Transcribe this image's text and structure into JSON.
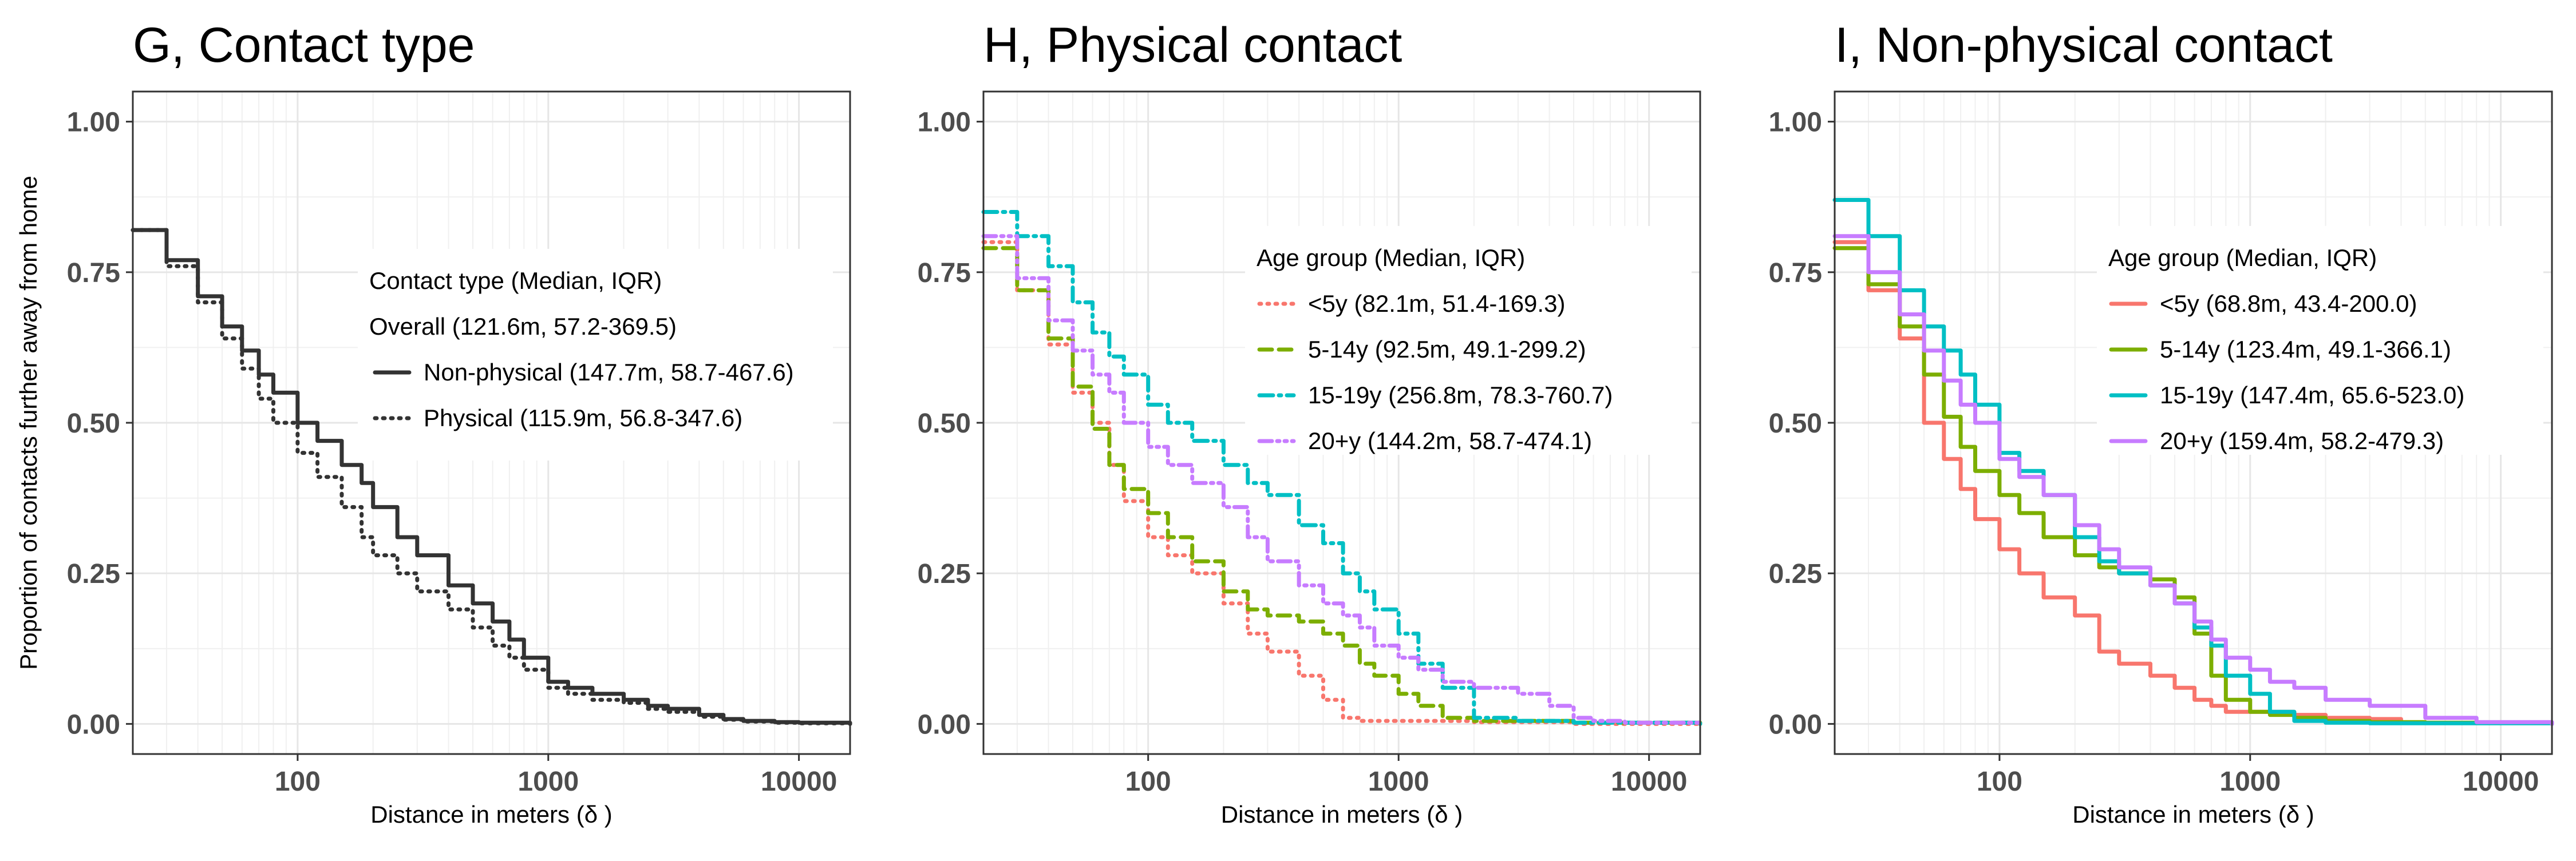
{
  "chart_data": [
    {
      "type": "line",
      "title": "G, Contact type",
      "xlabel": "Distance in meters (δ )",
      "ylabel": "Proportion of contacts further away from home",
      "x_scale": "log10",
      "xlim": [
        22,
        16000
      ],
      "ylim": [
        -0.05,
        1.05
      ],
      "x_ticks": [
        100,
        1000,
        10000
      ],
      "x_tick_labels": [
        "100",
        "1000",
        "10000"
      ],
      "y_ticks": [
        0,
        0.25,
        0.5,
        0.75,
        1.0
      ],
      "y_tick_labels": [
        "0.00",
        "0.25",
        "0.50",
        "0.75",
        "1.00"
      ],
      "grid": true,
      "legend": {
        "title": "Contact type (Median, IQR)",
        "subtitle": "Overall (121.6m, 57.2-369.5)",
        "entries": [
          "Non-physical (147.7m, 58.7-467.6)",
          "Physical (115.9m, 56.8-347.6)"
        ]
      },
      "series": [
        {
          "name": "Non-physical",
          "color": "#333333",
          "dash": "solid",
          "x": [
            22,
            30,
            40,
            50,
            60,
            70,
            80,
            100,
            120,
            150,
            180,
            200,
            250,
            300,
            400,
            500,
            600,
            700,
            800,
            1000,
            1200,
            1500,
            2000,
            2500,
            3000,
            4000,
            5000,
            6000,
            8000,
            10000,
            16000
          ],
          "y": [
            0.82,
            0.77,
            0.71,
            0.66,
            0.62,
            0.58,
            0.55,
            0.5,
            0.47,
            0.43,
            0.4,
            0.36,
            0.31,
            0.28,
            0.23,
            0.2,
            0.17,
            0.14,
            0.11,
            0.07,
            0.06,
            0.05,
            0.04,
            0.03,
            0.025,
            0.015,
            0.008,
            0.005,
            0.003,
            0.002,
            0.0
          ]
        },
        {
          "name": "Physical",
          "color": "#333333",
          "dash": "dotted",
          "x": [
            22,
            30,
            40,
            50,
            60,
            70,
            80,
            100,
            120,
            150,
            180,
            200,
            250,
            300,
            400,
            500,
            600,
            700,
            800,
            1000,
            1200,
            1500,
            2000,
            2500,
            3000,
            4000,
            5000,
            6000,
            8000,
            10000,
            16000
          ],
          "y": [
            0.82,
            0.76,
            0.7,
            0.64,
            0.59,
            0.54,
            0.5,
            0.45,
            0.41,
            0.36,
            0.31,
            0.28,
            0.25,
            0.22,
            0.19,
            0.16,
            0.13,
            0.11,
            0.09,
            0.06,
            0.05,
            0.04,
            0.035,
            0.025,
            0.02,
            0.012,
            0.007,
            0.004,
            0.002,
            0.001,
            0.0
          ]
        }
      ]
    },
    {
      "type": "line",
      "title": "H, Physical contact",
      "xlabel": "Distance in meters (δ )",
      "ylabel": "",
      "x_scale": "log10",
      "xlim": [
        22,
        16000
      ],
      "ylim": [
        -0.05,
        1.05
      ],
      "x_ticks": [
        100,
        1000,
        10000
      ],
      "x_tick_labels": [
        "100",
        "1000",
        "10000"
      ],
      "y_ticks": [
        0,
        0.25,
        0.5,
        0.75,
        1.0
      ],
      "y_tick_labels": [
        "0.00",
        "0.25",
        "0.50",
        "0.75",
        "1.00"
      ],
      "grid": true,
      "legend": {
        "title": "Age group (Median, IQR)",
        "entries": [
          "<5y (82.1m, 51.4-169.3)",
          "5-14y (92.5m, 49.1-299.2)",
          "15-19y (256.8m, 78.3-760.7)",
          "20+y (144.2m, 58.7-474.1)"
        ]
      },
      "series": [
        {
          "name": "<5y",
          "color": "#F8766D",
          "dash": "dotted",
          "x": [
            22,
            30,
            40,
            50,
            60,
            70,
            80,
            100,
            120,
            150,
            200,
            250,
            300,
            400,
            500,
            600,
            700,
            800,
            1000,
            2000,
            5000,
            16000
          ],
          "y": [
            0.8,
            0.72,
            0.63,
            0.55,
            0.5,
            0.43,
            0.37,
            0.31,
            0.28,
            0.25,
            0.2,
            0.15,
            0.12,
            0.08,
            0.04,
            0.01,
            0.005,
            0.005,
            0.005,
            0.003,
            0.0,
            0.0
          ]
        },
        {
          "name": "5-14y",
          "color": "#7CAE00",
          "dash": "dashed",
          "x": [
            22,
            30,
            40,
            50,
            60,
            70,
            80,
            100,
            120,
            150,
            200,
            250,
            300,
            400,
            500,
            600,
            700,
            800,
            1000,
            1200,
            1500,
            2000,
            5000,
            16000
          ],
          "y": [
            0.79,
            0.72,
            0.64,
            0.56,
            0.49,
            0.43,
            0.39,
            0.35,
            0.31,
            0.27,
            0.22,
            0.19,
            0.18,
            0.17,
            0.15,
            0.13,
            0.1,
            0.08,
            0.05,
            0.03,
            0.01,
            0.005,
            0.002,
            0.0
          ]
        },
        {
          "name": "15-19y",
          "color": "#00BFC4",
          "dash": "dashdot",
          "x": [
            22,
            30,
            40,
            50,
            60,
            70,
            80,
            100,
            120,
            150,
            200,
            250,
            300,
            400,
            500,
            600,
            700,
            800,
            1000,
            1200,
            1500,
            2000,
            3000,
            5000,
            16000
          ],
          "y": [
            0.85,
            0.81,
            0.76,
            0.7,
            0.65,
            0.61,
            0.58,
            0.53,
            0.5,
            0.47,
            0.43,
            0.4,
            0.38,
            0.33,
            0.3,
            0.25,
            0.22,
            0.19,
            0.15,
            0.1,
            0.06,
            0.01,
            0.005,
            0.002,
            0.0
          ]
        },
        {
          "name": "20+y",
          "color": "#C77CFF",
          "dash": "dashdotdot",
          "x": [
            22,
            30,
            40,
            50,
            60,
            70,
            80,
            100,
            120,
            150,
            200,
            250,
            300,
            400,
            500,
            600,
            700,
            800,
            1000,
            1200,
            1500,
            2000,
            3000,
            4000,
            5000,
            6000,
            8000,
            16000
          ],
          "y": [
            0.81,
            0.74,
            0.67,
            0.62,
            0.58,
            0.55,
            0.5,
            0.46,
            0.43,
            0.4,
            0.36,
            0.31,
            0.27,
            0.23,
            0.2,
            0.18,
            0.16,
            0.13,
            0.11,
            0.09,
            0.07,
            0.06,
            0.05,
            0.03,
            0.01,
            0.005,
            0.002,
            0.0
          ]
        }
      ]
    },
    {
      "type": "line",
      "title": "I, Non-physical contact",
      "xlabel": "Distance in meters (δ )",
      "ylabel": "",
      "x_scale": "log10",
      "xlim": [
        22,
        16000
      ],
      "ylim": [
        -0.05,
        1.05
      ],
      "x_ticks": [
        100,
        1000,
        10000
      ],
      "x_tick_labels": [
        "100",
        "1000",
        "10000"
      ],
      "y_ticks": [
        0,
        0.25,
        0.5,
        0.75,
        1.0
      ],
      "y_tick_labels": [
        "0.00",
        "0.25",
        "0.50",
        "0.75",
        "1.00"
      ],
      "grid": true,
      "legend": {
        "title": "Age group (Median, IQR)",
        "entries": [
          "<5y (68.8m, 43.4-200.0)",
          "5-14y (123.4m, 49.1-366.1)",
          "15-19y (147.4m, 65.6-523.0)",
          "20+y (159.4m, 58.2-479.3)"
        ]
      },
      "series": [
        {
          "name": "<5y",
          "color": "#F8766D",
          "dash": "solid",
          "x": [
            22,
            30,
            40,
            50,
            60,
            70,
            80,
            100,
            120,
            150,
            200,
            250,
            300,
            400,
            500,
            600,
            700,
            800,
            1000,
            1500,
            2000,
            3000,
            4000
          ],
          "y": [
            0.8,
            0.72,
            0.64,
            0.5,
            0.44,
            0.39,
            0.34,
            0.29,
            0.25,
            0.21,
            0.18,
            0.12,
            0.1,
            0.08,
            0.06,
            0.04,
            0.03,
            0.02,
            0.02,
            0.015,
            0.01,
            0.008,
            0.005
          ]
        },
        {
          "name": "5-14y",
          "color": "#7CAE00",
          "dash": "solid",
          "x": [
            22,
            30,
            40,
            50,
            60,
            70,
            80,
            100,
            120,
            150,
            200,
            250,
            300,
            400,
            500,
            600,
            700,
            800,
            1000,
            1200,
            1500,
            2000,
            3000,
            5000,
            16000
          ],
          "y": [
            0.79,
            0.73,
            0.66,
            0.58,
            0.51,
            0.46,
            0.42,
            0.38,
            0.35,
            0.31,
            0.28,
            0.26,
            0.25,
            0.24,
            0.21,
            0.15,
            0.08,
            0.04,
            0.02,
            0.015,
            0.01,
            0.005,
            0.003,
            0.002,
            0.0
          ]
        },
        {
          "name": "15-19y",
          "color": "#00BFC4",
          "dash": "solid",
          "x": [
            22,
            30,
            40,
            50,
            60,
            70,
            80,
            100,
            120,
            150,
            200,
            250,
            300,
            400,
            500,
            600,
            700,
            800,
            1000,
            1200,
            1500,
            2000,
            3000,
            16000
          ],
          "y": [
            0.87,
            0.81,
            0.72,
            0.66,
            0.62,
            0.58,
            0.53,
            0.45,
            0.42,
            0.38,
            0.31,
            0.27,
            0.25,
            0.23,
            0.2,
            0.16,
            0.13,
            0.08,
            0.05,
            0.02,
            0.005,
            0.002,
            0.001,
            0.0
          ]
        },
        {
          "name": "20+y",
          "color": "#C77CFF",
          "dash": "solid",
          "x": [
            22,
            30,
            40,
            50,
            60,
            70,
            80,
            100,
            120,
            150,
            200,
            250,
            300,
            400,
            500,
            600,
            700,
            800,
            1000,
            1200,
            1500,
            2000,
            3000,
            5000,
            8000,
            16000
          ],
          "y": [
            0.81,
            0.75,
            0.68,
            0.62,
            0.57,
            0.53,
            0.5,
            0.44,
            0.41,
            0.38,
            0.33,
            0.29,
            0.26,
            0.23,
            0.2,
            0.17,
            0.14,
            0.11,
            0.09,
            0.07,
            0.06,
            0.04,
            0.03,
            0.01,
            0.003,
            0.0
          ]
        }
      ]
    }
  ]
}
